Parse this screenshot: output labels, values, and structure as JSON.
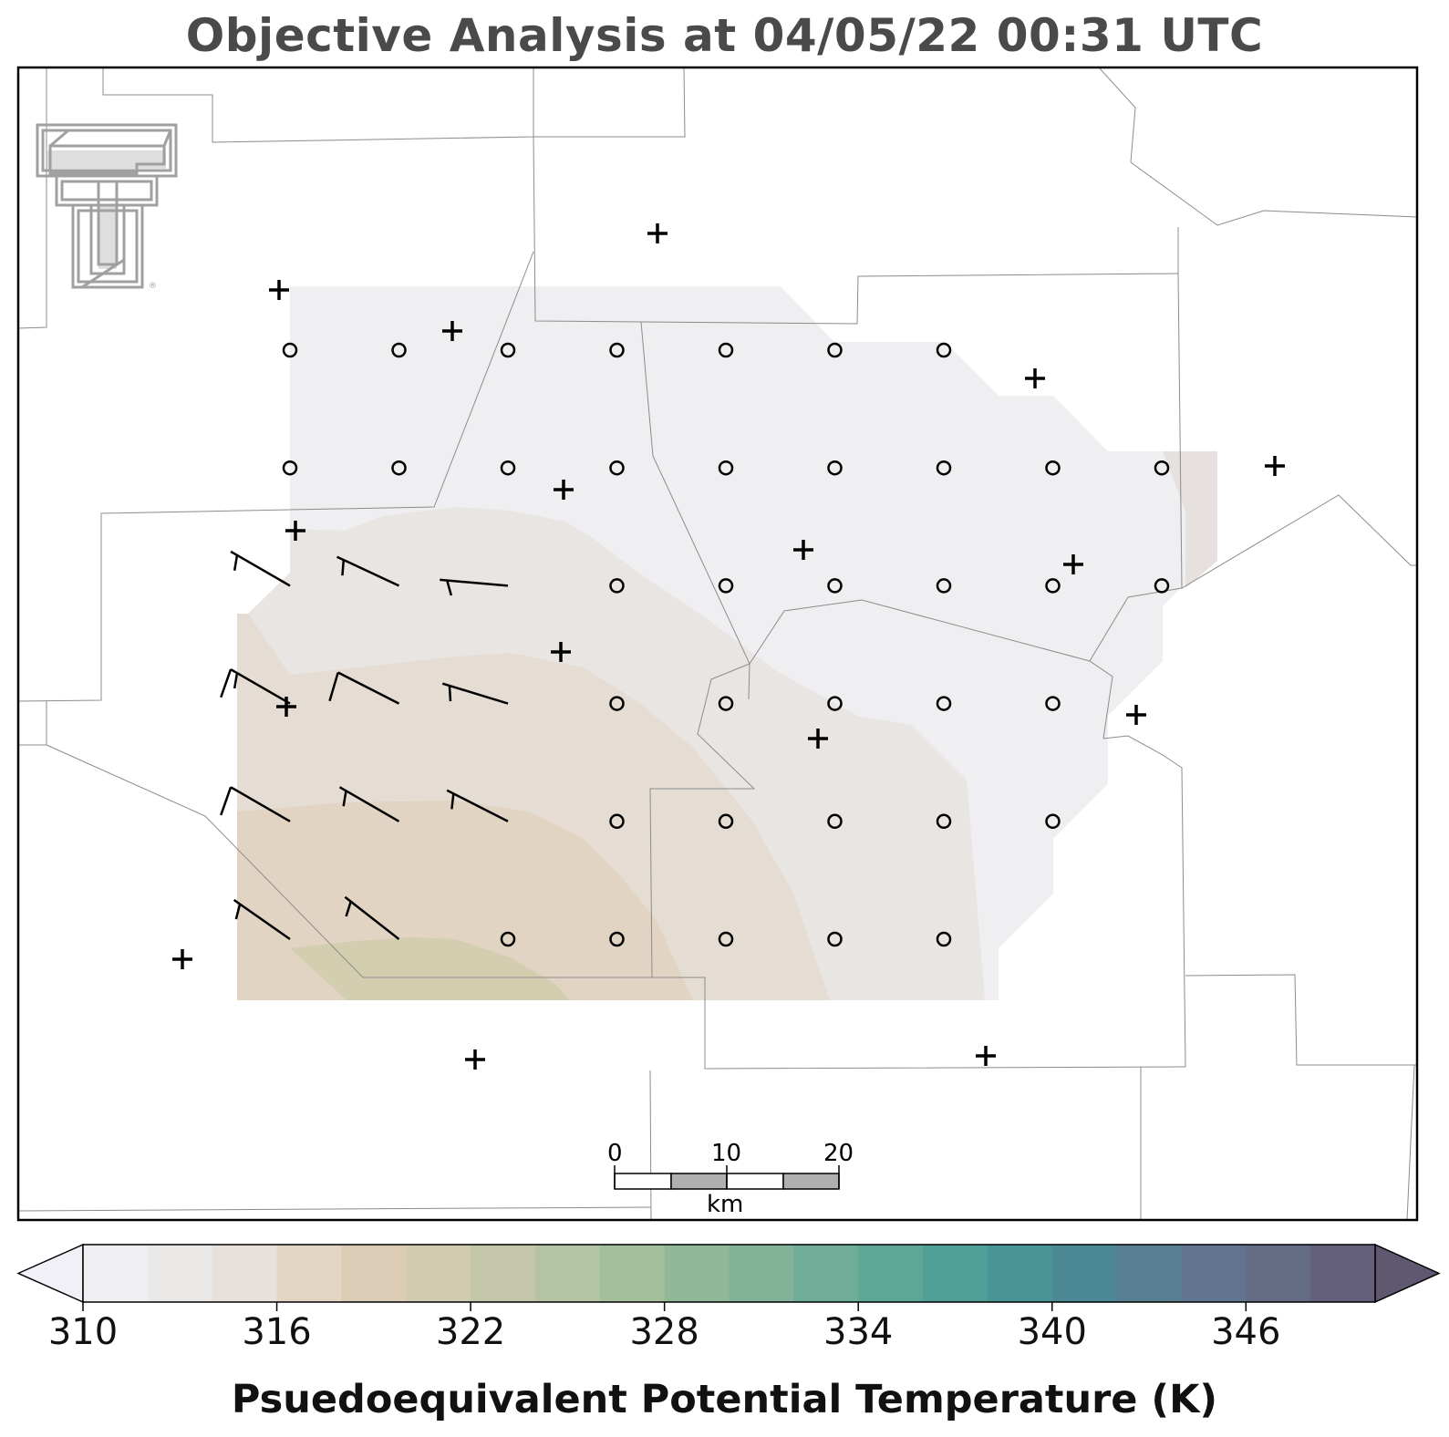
{
  "title": "Objective Analysis at 04/05/22 00:31 UTC",
  "logo": {
    "icon": "texas-tech-double-t-logo",
    "color": "#a0a0a0",
    "registered_mark": "®"
  },
  "colorbar": {
    "title": "Psuedoequivalent Potential Temperature (K)",
    "min": 310,
    "max": 350,
    "step": 2,
    "ticks": [
      "310",
      "316",
      "322",
      "328",
      "334",
      "340",
      "346"
    ],
    "colors": [
      "#efeef1",
      "#ebe8e8",
      "#e8e0da",
      "#e3d5c4",
      "#dcccb5",
      "#d1cbb0",
      "#c3c6a8",
      "#b4c3a4",
      "#a4bf9c",
      "#92b997",
      "#82b398",
      "#70ad98",
      "#5ea797",
      "#50a097",
      "#489497",
      "#4c8995",
      "#587e92",
      "#627590",
      "#646b85",
      "#645f7a"
    ],
    "under_color": "#f0f0f6",
    "over_color": "#605870"
  },
  "scale_bar": {
    "unit": "km",
    "labels": [
      "0",
      "10",
      "20"
    ]
  },
  "analysis_grid": {
    "columns": 9,
    "rows": 6,
    "calm_marker": "circle-icon",
    "calm_points": [
      [
        0,
        0
      ],
      [
        1,
        0
      ],
      [
        2,
        0
      ],
      [
        3,
        0
      ],
      [
        4,
        0
      ],
      [
        5,
        0
      ],
      [
        6,
        0
      ],
      [
        0,
        1
      ],
      [
        1,
        1
      ],
      [
        2,
        1
      ],
      [
        3,
        1
      ],
      [
        4,
        1
      ],
      [
        5,
        1
      ],
      [
        6,
        1
      ],
      [
        7,
        1
      ],
      [
        8,
        1
      ],
      [
        3,
        2
      ],
      [
        4,
        2
      ],
      [
        5,
        2
      ],
      [
        6,
        2
      ],
      [
        7,
        2
      ],
      [
        8,
        2
      ],
      [
        3,
        3
      ],
      [
        4,
        3
      ],
      [
        5,
        3
      ],
      [
        6,
        3
      ],
      [
        7,
        3
      ],
      [
        3,
        4
      ],
      [
        4,
        4
      ],
      [
        5,
        4
      ],
      [
        6,
        4
      ],
      [
        7,
        4
      ],
      [
        2,
        5
      ],
      [
        3,
        5
      ],
      [
        4,
        5
      ],
      [
        5,
        5
      ],
      [
        6,
        5
      ]
    ],
    "wind_barbs": [
      {
        "col": 0,
        "row": 2,
        "from_deg": 300,
        "speed_kt": 5
      },
      {
        "col": 1,
        "row": 2,
        "from_deg": 295,
        "speed_kt": 5
      },
      {
        "col": 2,
        "row": 2,
        "from_deg": 275,
        "speed_kt": 5
      },
      {
        "col": 0,
        "row": 3,
        "from_deg": 300,
        "speed_kt": 15
      },
      {
        "col": 1,
        "row": 3,
        "from_deg": 297,
        "speed_kt": 10
      },
      {
        "col": 2,
        "row": 3,
        "from_deg": 287,
        "speed_kt": 5
      },
      {
        "col": 0,
        "row": 4,
        "from_deg": 300,
        "speed_kt": 10
      },
      {
        "col": 1,
        "row": 4,
        "from_deg": 300,
        "speed_kt": 5
      },
      {
        "col": 2,
        "row": 4,
        "from_deg": 297,
        "speed_kt": 5
      },
      {
        "col": 0,
        "row": 5,
        "from_deg": 305,
        "speed_kt": 5
      },
      {
        "col": 1,
        "row": 5,
        "from_deg": 308,
        "speed_kt": 5
      }
    ]
  },
  "station_marker": "plus-icon"
}
